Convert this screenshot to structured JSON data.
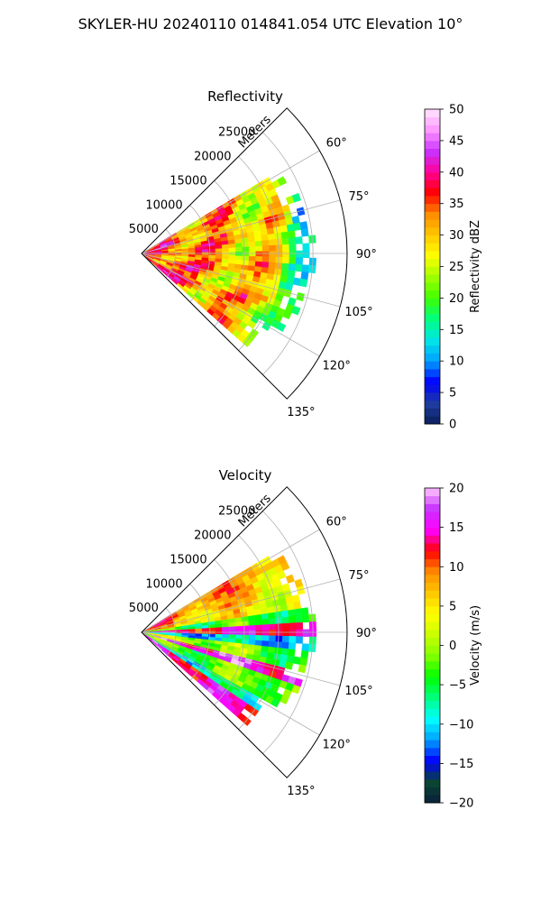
{
  "figure": {
    "suptitle": "SKYLER-HU  20240110  014841.054 UTC Elevation 10°"
  },
  "chart_data": [
    {
      "type": "polar-sector",
      "title": "Reflectivity",
      "radial_label": "Meters",
      "r_ticks": [
        5000,
        10000,
        15000,
        20000,
        25000
      ],
      "r_max": 30000,
      "theta_ticks": [
        60,
        75,
        90,
        105,
        120,
        135
      ],
      "theta_tick_labels": [
        "60°",
        "75°",
        "90°",
        "105°",
        "120°",
        "135°"
      ],
      "theta_range": [
        45,
        135
      ],
      "data_extent": {
        "theta": [
          59,
          130
        ],
        "r_max": 25500
      },
      "colorbar": {
        "label": "Reflectivity dBZ",
        "range": [
          0,
          50
        ],
        "ticks": [
          0,
          5,
          10,
          15,
          20,
          25,
          30,
          35,
          40,
          45,
          50
        ],
        "tick_labels": [
          "0",
          "5",
          "10",
          "15",
          "20",
          "25",
          "30",
          "35",
          "40",
          "45",
          "50"
        ],
        "colors": [
          "#0a1e5a",
          "#1e3ca0",
          "#0000ff",
          "#00a0ff",
          "#00e6e6",
          "#00ff80",
          "#40ff00",
          "#a0ff00",
          "#ffff00",
          "#ffc800",
          "#ff8c00",
          "#ff0000",
          "#ff0096",
          "#c832ff",
          "#ff96ff",
          "#ffe6ff"
        ]
      }
    },
    {
      "type": "polar-sector",
      "title": "Velocity",
      "radial_label": "Meters",
      "r_ticks": [
        5000,
        10000,
        15000,
        20000,
        25000
      ],
      "r_max": 30000,
      "theta_ticks": [
        60,
        75,
        90,
        105,
        120,
        135
      ],
      "theta_tick_labels": [
        "60°",
        "75°",
        "90°",
        "105°",
        "120°",
        "135°"
      ],
      "theta_range": [
        45,
        135
      ],
      "data_extent": {
        "theta": [
          59,
          130
        ],
        "r_max": 25500
      },
      "colorbar": {
        "label": "Velocity (m/s)",
        "range": [
          -20,
          20
        ],
        "ticks": [
          -20,
          -15,
          -10,
          -5,
          0,
          5,
          10,
          15,
          20
        ],
        "tick_labels": [
          "−20",
          "−15",
          "−10",
          "−5",
          "0",
          "5",
          "10",
          "15",
          "20"
        ],
        "colors": [
          "#0a1e3c",
          "#0a4632",
          "#0000ff",
          "#00a0ff",
          "#00ffff",
          "#00ff80",
          "#00ff00",
          "#80ff00",
          "#c8ff00",
          "#ffff00",
          "#ffc800",
          "#ff8c00",
          "#ff0000",
          "#ff00ff",
          "#c832ff",
          "#ffc8ff"
        ]
      }
    }
  ]
}
